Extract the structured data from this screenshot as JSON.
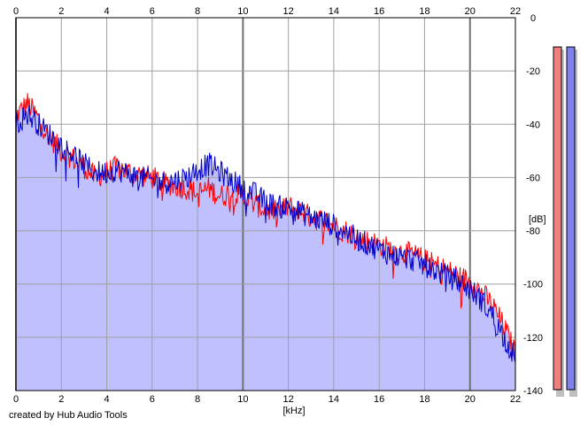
{
  "credit": "created by Hub Audio Tools",
  "chart_data": {
    "type": "line",
    "xlabel": "[kHz]",
    "ylabel": "[dB]",
    "xlim": [
      0,
      22
    ],
    "ylim": [
      -140,
      0
    ],
    "x_ticks": [
      0,
      2,
      4,
      6,
      8,
      10,
      12,
      14,
      16,
      18,
      20,
      22
    ],
    "y_ticks": [
      0,
      -20,
      -40,
      -60,
      -80,
      -100,
      -120,
      -140
    ],
    "grid": true,
    "fill_color": "#c0c0ff",
    "series": [
      {
        "color": "#ff0000",
        "x": [
          0,
          0.5,
          1,
          1.5,
          2,
          2.5,
          3,
          3.5,
          4,
          4.5,
          5,
          5.5,
          6,
          6.5,
          7,
          7.5,
          8,
          8.5,
          9,
          9.5,
          10,
          10.5,
          11,
          11.5,
          12,
          12.5,
          13,
          13.5,
          14,
          14.5,
          15,
          15.5,
          16,
          16.5,
          17,
          17.5,
          18,
          18.5,
          19,
          19.5,
          20,
          20.5,
          21,
          21.5,
          22
        ],
        "values": [
          -37,
          -32,
          -38,
          -45,
          -50,
          -53,
          -56,
          -60,
          -58,
          -56,
          -58,
          -59,
          -60,
          -62,
          -63,
          -64,
          -66,
          -64,
          -67,
          -66,
          -67,
          -70,
          -72,
          -73,
          -71,
          -72,
          -75,
          -76,
          -78,
          -80,
          -82,
          -84,
          -85,
          -87,
          -88,
          -89,
          -91,
          -93,
          -95,
          -97,
          -99,
          -103,
          -108,
          -116,
          -126
        ]
      },
      {
        "color": "#0000c8",
        "x": [
          0,
          0.5,
          1,
          1.5,
          2,
          2.5,
          3,
          3.5,
          4,
          4.5,
          5,
          5.5,
          6,
          6.5,
          7,
          7.5,
          8,
          8.5,
          9,
          9.5,
          10,
          10.5,
          11,
          11.5,
          12,
          12.5,
          13,
          13.5,
          14,
          14.5,
          15,
          15.5,
          16,
          16.5,
          17,
          17.5,
          18,
          18.5,
          19,
          19.5,
          20,
          20.5,
          21,
          21.5,
          22
        ],
        "values": [
          -40,
          -36,
          -40,
          -44,
          -48,
          -51,
          -55,
          -58,
          -58,
          -57,
          -59,
          -60,
          -61,
          -62,
          -61,
          -60,
          -57,
          -55,
          -58,
          -61,
          -64,
          -66,
          -69,
          -71,
          -71,
          -73,
          -75,
          -76,
          -78,
          -80,
          -83,
          -85,
          -87,
          -89,
          -90,
          -91,
          -93,
          -95,
          -97,
          -99,
          -102,
          -106,
          -112,
          -120,
          -128
        ]
      }
    ],
    "level_meters": [
      {
        "color": "#f08080"
      },
      {
        "color": "#8080f0"
      }
    ]
  }
}
